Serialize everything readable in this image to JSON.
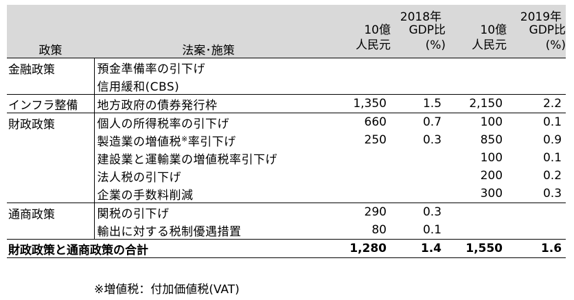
{
  "header": {
    "policy": "政策",
    "measure": "法案･施策",
    "year1": "2018年",
    "year2": "2019年",
    "unit_value_line1": "10億",
    "unit_value_line2": "人民元",
    "unit_pct_line1": "GDP比",
    "unit_pct_line2": "(%)"
  },
  "groups": [
    {
      "policy": "金融政策",
      "rows": [
        {
          "measure": "預金準備率の引下げ",
          "v2018": "",
          "p2018": "",
          "v2019": "",
          "p2019": ""
        },
        {
          "measure": "信用緩和(CBS)",
          "v2018": "",
          "p2018": "",
          "v2019": "",
          "p2019": ""
        }
      ]
    },
    {
      "policy": "インフラ整備",
      "rows": [
        {
          "measure": "地方政府の債券発行枠",
          "v2018": "1,350",
          "p2018": "1.5",
          "v2019": "2,150",
          "p2019": "2.2"
        }
      ]
    },
    {
      "policy": "財政政策",
      "rows": [
        {
          "measure": "個人の所得税率の引下げ",
          "v2018": "660",
          "p2018": "0.7",
          "v2019": "100",
          "p2019": "0.1"
        },
        {
          "measure": "製造業の増値税",
          "note": "※",
          "measure_tail": "率引下げ",
          "v2018": "250",
          "p2018": "0.3",
          "v2019": "850",
          "p2019": "0.9"
        },
        {
          "measure": "建設業と運輸業の増値税率引下げ",
          "v2018": "",
          "p2018": "",
          "v2019": "100",
          "p2019": "0.1"
        },
        {
          "measure": "法人税の引下げ",
          "v2018": "",
          "p2018": "",
          "v2019": "200",
          "p2019": "0.2"
        },
        {
          "measure": "企業の手数料削減",
          "v2018": "",
          "p2018": "",
          "v2019": "300",
          "p2019": "0.3"
        }
      ]
    },
    {
      "policy": "通商政策",
      "rows": [
        {
          "measure": "関税の引下げ",
          "v2018": "290",
          "p2018": "0.3",
          "v2019": "",
          "p2019": ""
        },
        {
          "measure": "輸出に対する税制優遇措置",
          "v2018": "80",
          "p2018": "0.1",
          "v2019": "",
          "p2019": ""
        }
      ]
    }
  ],
  "total": {
    "label": "財政政策と通商政策の合計",
    "v2018": "1,280",
    "p2018": "1.4",
    "v2019": "1,550",
    "p2019": "1.6"
  },
  "footnote": "※増値税：付加価値税(VAT)"
}
